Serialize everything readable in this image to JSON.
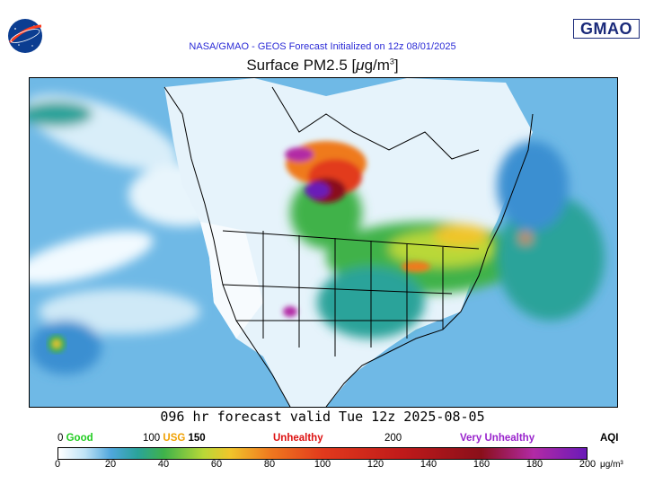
{
  "header": {
    "forecast_line": "NASA/GMAO - GEOS Forecast Initialized on 12z 08/01/2025",
    "title_prefix": "Surface PM2.5 [",
    "title_unit_mu": "μ",
    "title_unit_rest": "g/m",
    "title_unit_exp": "3",
    "title_suffix": "]",
    "gmao_logo": "GMAO",
    "nasa_logo": "NASA"
  },
  "valid_line": "096 hr forecast valid Tue 12z 2025-08-05",
  "aqi_labels": {
    "good_num": "0",
    "good": "Good",
    "usg_num": "100",
    "usg": "USG",
    "usg_num2": "150",
    "unhealthy": "Unhealthy",
    "num_200": "200",
    "very_unhealthy": "Very Unhealthy",
    "aqi": "AQI"
  },
  "colors": {
    "good": "#22cc22",
    "usg": "#f0a000",
    "unhealthy": "#dd1111",
    "very_unhealthy": "#9922cc",
    "header": "#2b2bd6"
  },
  "colorbar": {
    "ticks": [
      "0",
      "20",
      "40",
      "60",
      "80",
      "100",
      "120",
      "140",
      "160",
      "180",
      "200"
    ],
    "unit": "μg/m³",
    "min": 0,
    "max": 200,
    "stops": [
      {
        "v": 0,
        "c": "#ffffff"
      },
      {
        "v": 10,
        "c": "#bfe3f6"
      },
      {
        "v": 20,
        "c": "#4fa6dc"
      },
      {
        "v": 30,
        "c": "#2aa39a"
      },
      {
        "v": 40,
        "c": "#3fb24a"
      },
      {
        "v": 55,
        "c": "#b9d837"
      },
      {
        "v": 65,
        "c": "#f1c52b"
      },
      {
        "v": 80,
        "c": "#ef7a1f"
      },
      {
        "v": 100,
        "c": "#e23a1c"
      },
      {
        "v": 130,
        "c": "#c01a1a"
      },
      {
        "v": 160,
        "c": "#8a0f1a"
      },
      {
        "v": 180,
        "c": "#b22aa5"
      },
      {
        "v": 200,
        "c": "#6a1ab8"
      }
    ]
  }
}
